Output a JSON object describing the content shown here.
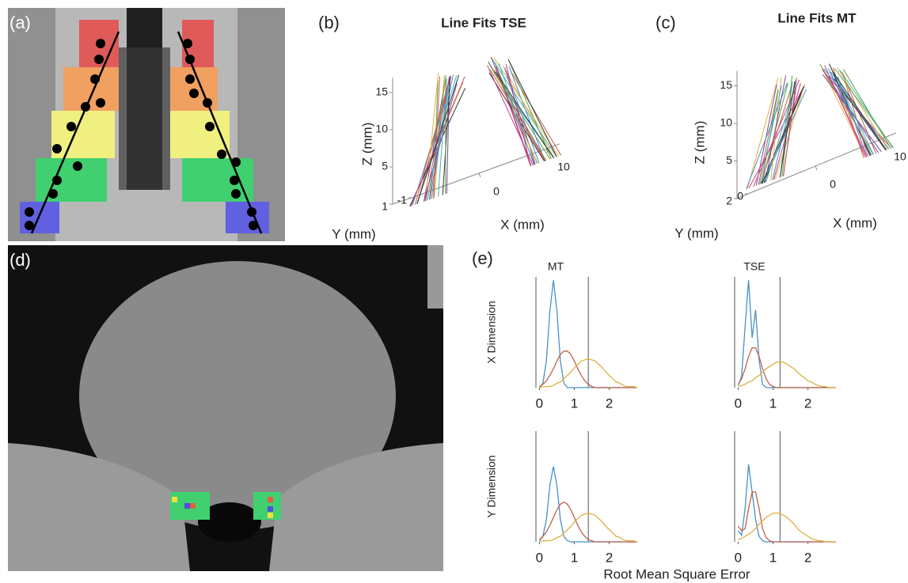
{
  "labels": {
    "a": "(a)",
    "b": "(b)",
    "c": "(c)",
    "d": "(d)",
    "e": "(e)"
  },
  "e_xlabel": "Root Mean Square Error",
  "chart_data": [
    {
      "type": "line3d",
      "title": "Line Fits TSE",
      "xlabel": "X (mm)",
      "ylabel": "Y (mm)",
      "zlabel": "Z (mm)",
      "xlim": [
        -10,
        12
      ],
      "ylim": [
        -1,
        1
      ],
      "zlim": [
        0,
        17
      ],
      "xticks": [
        0,
        10
      ],
      "yticks": [
        1,
        -1
      ],
      "zticks": [
        5,
        10,
        15
      ]
    },
    {
      "type": "line3d",
      "title": "Line Fits MT",
      "xlabel": "X (mm)",
      "ylabel": "Y (mm)",
      "zlabel": "Z (mm)",
      "xlim": [
        -10,
        12
      ],
      "ylim": [
        0,
        2
      ],
      "zlim": [
        0,
        17
      ],
      "xticks": [
        0,
        10
      ],
      "yticks": [
        2,
        0
      ],
      "zticks": [
        5,
        10,
        15
      ]
    },
    {
      "type": "line",
      "title": "MT",
      "ylabel": "X Dimension",
      "xlim": [
        -0.1,
        3.8
      ],
      "ylim": [
        0,
        1
      ],
      "xticks": [
        0,
        1,
        2
      ],
      "vlines": [
        1.4
      ],
      "x": [
        0,
        0.1,
        0.2,
        0.3,
        0.4,
        0.5,
        0.6,
        0.7,
        0.8,
        0.9,
        1.0,
        1.1,
        1.2,
        1.3,
        1.4,
        1.5,
        1.6,
        1.7,
        1.8,
        1.9,
        2.0,
        2.1,
        2.2,
        2.3,
        2.4,
        2.5,
        2.6,
        2.7,
        2.8
      ],
      "series": [
        {
          "color": "#4a90c8",
          "values": [
            0,
            0.04,
            0.24,
            0.69,
            0.97,
            0.69,
            0.24,
            0.04,
            0,
            0,
            0,
            0,
            0,
            0,
            0,
            0,
            0,
            0,
            0,
            0,
            0,
            0,
            0,
            0,
            0,
            0,
            0,
            0,
            0
          ]
        },
        {
          "color": "#c0604a",
          "values": [
            0.01,
            0.03,
            0.06,
            0.11,
            0.17,
            0.24,
            0.3,
            0.33,
            0.33,
            0.3,
            0.24,
            0.17,
            0.11,
            0.06,
            0.03,
            0.01,
            0,
            0,
            0,
            0,
            0,
            0,
            0,
            0,
            0,
            0,
            0,
            0,
            0
          ]
        },
        {
          "color": "#e0b040",
          "values": [
            0,
            0.01,
            0.01,
            0.01,
            0.02,
            0.04,
            0.05,
            0.08,
            0.11,
            0.14,
            0.18,
            0.21,
            0.24,
            0.25,
            0.26,
            0.25,
            0.24,
            0.21,
            0.18,
            0.14,
            0.11,
            0.08,
            0.05,
            0.04,
            0.02,
            0.01,
            0.01,
            0.01,
            0
          ]
        }
      ]
    },
    {
      "type": "line",
      "title": "TSE",
      "xlim": [
        -0.1,
        3.8
      ],
      "ylim": [
        0,
        1
      ],
      "xticks": [
        0,
        1,
        2
      ],
      "vlines": [
        1.2
      ],
      "x": [
        0,
        0.1,
        0.2,
        0.3,
        0.4,
        0.5,
        0.6,
        0.7,
        0.8,
        0.9,
        1.0,
        1.1,
        1.2,
        1.3,
        1.4,
        1.5,
        1.6,
        1.7,
        1.8,
        1.9,
        2.0,
        2.1,
        2.2,
        2.3,
        2.4,
        2.5,
        2.6,
        2.7,
        2.8
      ],
      "series": [
        {
          "color": "#4a90c8",
          "values": [
            0.02,
            0.1,
            0.55,
            0.97,
            0.45,
            0.7,
            0.25,
            0.03,
            0,
            0,
            0,
            0,
            0,
            0,
            0,
            0,
            0,
            0,
            0,
            0,
            0,
            0,
            0,
            0,
            0,
            0,
            0,
            0,
            0
          ]
        },
        {
          "color": "#c0604a",
          "values": [
            0.03,
            0.08,
            0.17,
            0.28,
            0.36,
            0.36,
            0.28,
            0.17,
            0.08,
            0.03,
            0.01,
            0,
            0,
            0,
            0,
            0,
            0,
            0,
            0,
            0,
            0,
            0,
            0,
            0,
            0,
            0,
            0,
            0,
            0
          ]
        },
        {
          "color": "#e0b040",
          "values": [
            0.01,
            0.02,
            0.03,
            0.05,
            0.06,
            0.09,
            0.11,
            0.14,
            0.17,
            0.19,
            0.21,
            0.23,
            0.23,
            0.23,
            0.21,
            0.19,
            0.17,
            0.14,
            0.11,
            0.09,
            0.06,
            0.05,
            0.03,
            0.02,
            0.01,
            0.01,
            0,
            0,
            0
          ]
        }
      ]
    },
    {
      "type": "line",
      "ylabel": "Y Dimension",
      "xlim": [
        -0.1,
        3.8
      ],
      "ylim": [
        0,
        1
      ],
      "xticks": [
        0,
        1,
        2
      ],
      "vlines": [
        1.4
      ],
      "x": [
        0,
        0.1,
        0.2,
        0.3,
        0.4,
        0.5,
        0.6,
        0.7,
        0.8,
        0.9,
        1.0,
        1.1,
        1.2,
        1.3,
        1.4,
        1.5,
        1.6,
        1.7,
        1.8,
        1.9,
        2.0,
        2.1,
        2.2,
        2.3,
        2.4,
        2.5,
        2.6,
        2.7,
        2.8
      ],
      "series": [
        {
          "color": "#4a90c8",
          "values": [
            0.01,
            0.05,
            0.2,
            0.51,
            0.68,
            0.51,
            0.2,
            0.05,
            0.01,
            0,
            0,
            0,
            0,
            0,
            0,
            0,
            0,
            0,
            0,
            0,
            0,
            0,
            0,
            0,
            0,
            0,
            0,
            0,
            0
          ]
        },
        {
          "color": "#c0604a",
          "values": [
            0.02,
            0.05,
            0.09,
            0.15,
            0.22,
            0.29,
            0.34,
            0.36,
            0.34,
            0.29,
            0.22,
            0.15,
            0.09,
            0.05,
            0.02,
            0.01,
            0,
            0,
            0,
            0,
            0,
            0,
            0,
            0,
            0,
            0,
            0,
            0,
            0
          ]
        },
        {
          "color": "#e0b040",
          "values": [
            0,
            0.01,
            0.01,
            0.01,
            0.02,
            0.04,
            0.05,
            0.08,
            0.11,
            0.14,
            0.18,
            0.21,
            0.24,
            0.25,
            0.26,
            0.25,
            0.24,
            0.21,
            0.18,
            0.14,
            0.11,
            0.08,
            0.05,
            0.04,
            0.02,
            0.01,
            0.01,
            0.01,
            0
          ]
        }
      ]
    },
    {
      "type": "line",
      "xlim": [
        -0.1,
        3.8
      ],
      "ylim": [
        0,
        1
      ],
      "xticks": [
        0,
        1,
        2
      ],
      "vlines": [
        1.2
      ],
      "x": [
        0,
        0.1,
        0.2,
        0.3,
        0.4,
        0.5,
        0.6,
        0.7,
        0.8,
        0.9,
        1.0,
        1.1,
        1.2,
        1.3,
        1.4,
        1.5,
        1.6,
        1.7,
        1.8,
        1.9,
        2.0,
        2.1,
        2.2,
        2.3,
        2.4,
        2.5,
        2.6,
        2.7,
        2.8
      ],
      "series": [
        {
          "color": "#4a90c8",
          "values": [
            0.1,
            0.06,
            0.3,
            0.7,
            0.45,
            0.2,
            0.05,
            0.01,
            0,
            0,
            0,
            0,
            0,
            0,
            0,
            0,
            0,
            0,
            0,
            0,
            0,
            0,
            0,
            0,
            0,
            0,
            0,
            0,
            0
          ]
        },
        {
          "color": "#c0604a",
          "values": [
            0.14,
            0.1,
            0.12,
            0.3,
            0.45,
            0.45,
            0.3,
            0.12,
            0.04,
            0.01,
            0,
            0,
            0,
            0,
            0,
            0,
            0,
            0,
            0,
            0,
            0,
            0,
            0,
            0,
            0,
            0,
            0,
            0,
            0
          ]
        },
        {
          "color": "#e0b040",
          "values": [
            0.02,
            0.03,
            0.05,
            0.07,
            0.09,
            0.12,
            0.16,
            0.19,
            0.22,
            0.24,
            0.26,
            0.26,
            0.26,
            0.24,
            0.22,
            0.19,
            0.16,
            0.12,
            0.09,
            0.07,
            0.05,
            0.03,
            0.02,
            0.01,
            0.01,
            0,
            0,
            0,
            0
          ]
        }
      ]
    }
  ]
}
